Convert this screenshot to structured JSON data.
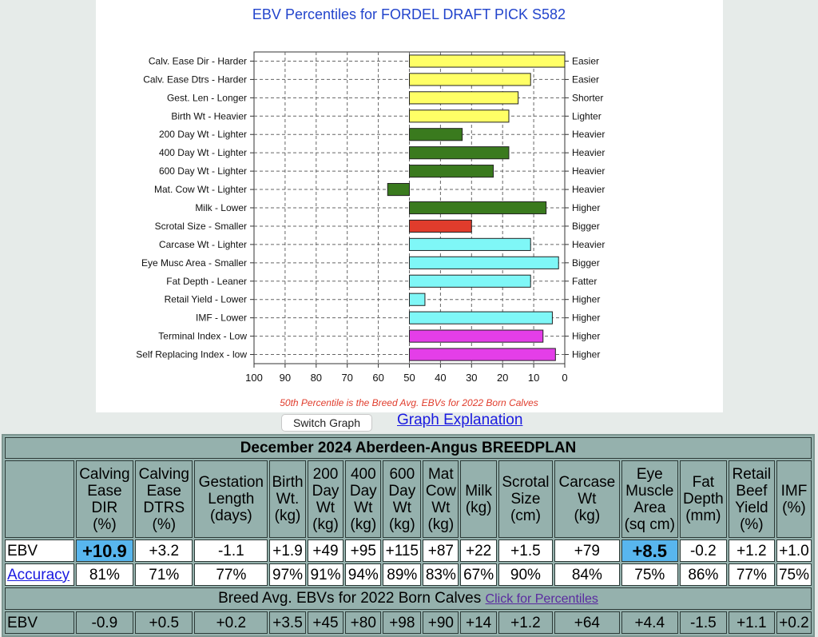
{
  "chart_data": {
    "type": "bar",
    "orientation": "horizontal",
    "title": "EBV Percentiles for FORDEL DRAFT PICK S582",
    "footnote": "50th Percentile is the Breed Avg. EBVs for 2022 Born Calves",
    "xlim": [
      100,
      0
    ],
    "x_ticks": [
      "100",
      "90",
      "80",
      "70",
      "60",
      "50",
      "40",
      "30",
      "20",
      "10",
      "0"
    ],
    "grid": true,
    "baseline": 50,
    "categories": [
      {
        "left": "Calv. Ease Dir - Harder",
        "right": "Easier",
        "value": 0,
        "color": "#ffff66"
      },
      {
        "left": "Calv. Ease Dtrs - Harder",
        "right": "Easier",
        "value": 11,
        "color": "#ffff66"
      },
      {
        "left": "Gest. Len - Longer",
        "right": "Shorter",
        "value": 15,
        "color": "#ffff66"
      },
      {
        "left": "Birth Wt - Heavier",
        "right": "Lighter",
        "value": 18,
        "color": "#ffff66"
      },
      {
        "left": "200 Day Wt - Lighter",
        "right": "Heavier",
        "value": 33,
        "color": "#3a7a1e"
      },
      {
        "left": "400 Day Wt - Lighter",
        "right": "Heavier",
        "value": 18,
        "color": "#3a7a1e"
      },
      {
        "left": "600 Day Wt - Lighter",
        "right": "Heavier",
        "value": 23,
        "color": "#3a7a1e"
      },
      {
        "left": "Mat. Cow Wt - Lighter",
        "right": "Heavier",
        "value": 57,
        "color": "#3a7a1e"
      },
      {
        "left": "Milk - Lower",
        "right": "Higher",
        "value": 6,
        "color": "#3a7a1e"
      },
      {
        "left": "Scrotal Size - Smaller",
        "right": "Bigger",
        "value": 30,
        "color": "#e03c2c"
      },
      {
        "left": "Carcase Wt - Lighter",
        "right": "Heavier",
        "value": 11,
        "color": "#7ff7f7"
      },
      {
        "left": "Eye Musc Area - Smaller",
        "right": "Bigger",
        "value": 2,
        "color": "#7ff7f7"
      },
      {
        "left": "Fat Depth - Leaner",
        "right": "Fatter",
        "value": 11,
        "color": "#7ff7f7"
      },
      {
        "left": "Retail Yield - Lower",
        "right": "Higher",
        "value": 45,
        "color": "#7ff7f7"
      },
      {
        "left": "IMF - Lower",
        "right": "Higher",
        "value": 4,
        "color": "#7ff7f7"
      },
      {
        "left": "Terminal Index - Low",
        "right": "Higher",
        "value": 7,
        "color": "#e43ee8"
      },
      {
        "left": "Self Replacing Index - low",
        "right": "Higher",
        "value": 3,
        "color": "#e43ee8"
      }
    ]
  },
  "buttons": {
    "switch_graph": "Switch Graph",
    "graph_explanation": "Graph Explanation"
  },
  "table": {
    "title": "December 2024 Aberdeen-Angus BREEDPLAN",
    "headers": [
      [
        "Calving",
        "Ease",
        "DIR",
        "(%)"
      ],
      [
        "Calving",
        "Ease",
        "DTRS",
        "(%)"
      ],
      [
        "Gestation",
        "Length",
        "(days)"
      ],
      [
        "Birth",
        "Wt.",
        "(kg)"
      ],
      [
        "200",
        "Day",
        "Wt",
        "(kg)"
      ],
      [
        "400",
        "Day",
        "Wt",
        "(kg)"
      ],
      [
        "600",
        "Day",
        "Wt",
        "(kg)"
      ],
      [
        "Mat",
        "Cow",
        "Wt",
        "(kg)"
      ],
      [
        "Milk",
        "(kg)"
      ],
      [
        "Scrotal",
        "Size",
        "(cm)"
      ],
      [
        "Carcase",
        "Wt",
        "(kg)"
      ],
      [
        "Eye",
        "Muscle",
        "Area",
        "(sq cm)"
      ],
      [
        "Fat",
        "Depth",
        "(mm)"
      ],
      [
        "Retail",
        "Beef",
        "Yield",
        "(%)"
      ],
      [
        "IMF",
        "(%)"
      ]
    ],
    "ebv_label": "EBV",
    "ebv_values": [
      "+10.9",
      "+3.2",
      "-1.1",
      "+1.9",
      "+49",
      "+95",
      "+115",
      "+87",
      "+22",
      "+1.5",
      "+79",
      "+8.5",
      "-0.2",
      "+1.2",
      "+1.0"
    ],
    "ebv_highlight_color": "#58b6ee",
    "accuracy_label": "Accuracy",
    "accuracy_values": [
      "81%",
      "71%",
      "77%",
      "97%",
      "91%",
      "94%",
      "89%",
      "83%",
      "67%",
      "90%",
      "84%",
      "75%",
      "86%",
      "77%",
      "75%"
    ],
    "breed_avg_title": "Breed Avg. EBVs for 2022 Born Calves",
    "percentiles_link": "Click for Percentiles",
    "avg_label": "EBV",
    "avg_values": [
      "-0.9",
      "+0.5",
      "+0.2",
      "+3.5",
      "+45",
      "+80",
      "+98",
      "+90",
      "+14",
      "+1.2",
      "+64",
      "+4.4",
      "-1.5",
      "+1.1",
      "+0.2"
    ]
  }
}
